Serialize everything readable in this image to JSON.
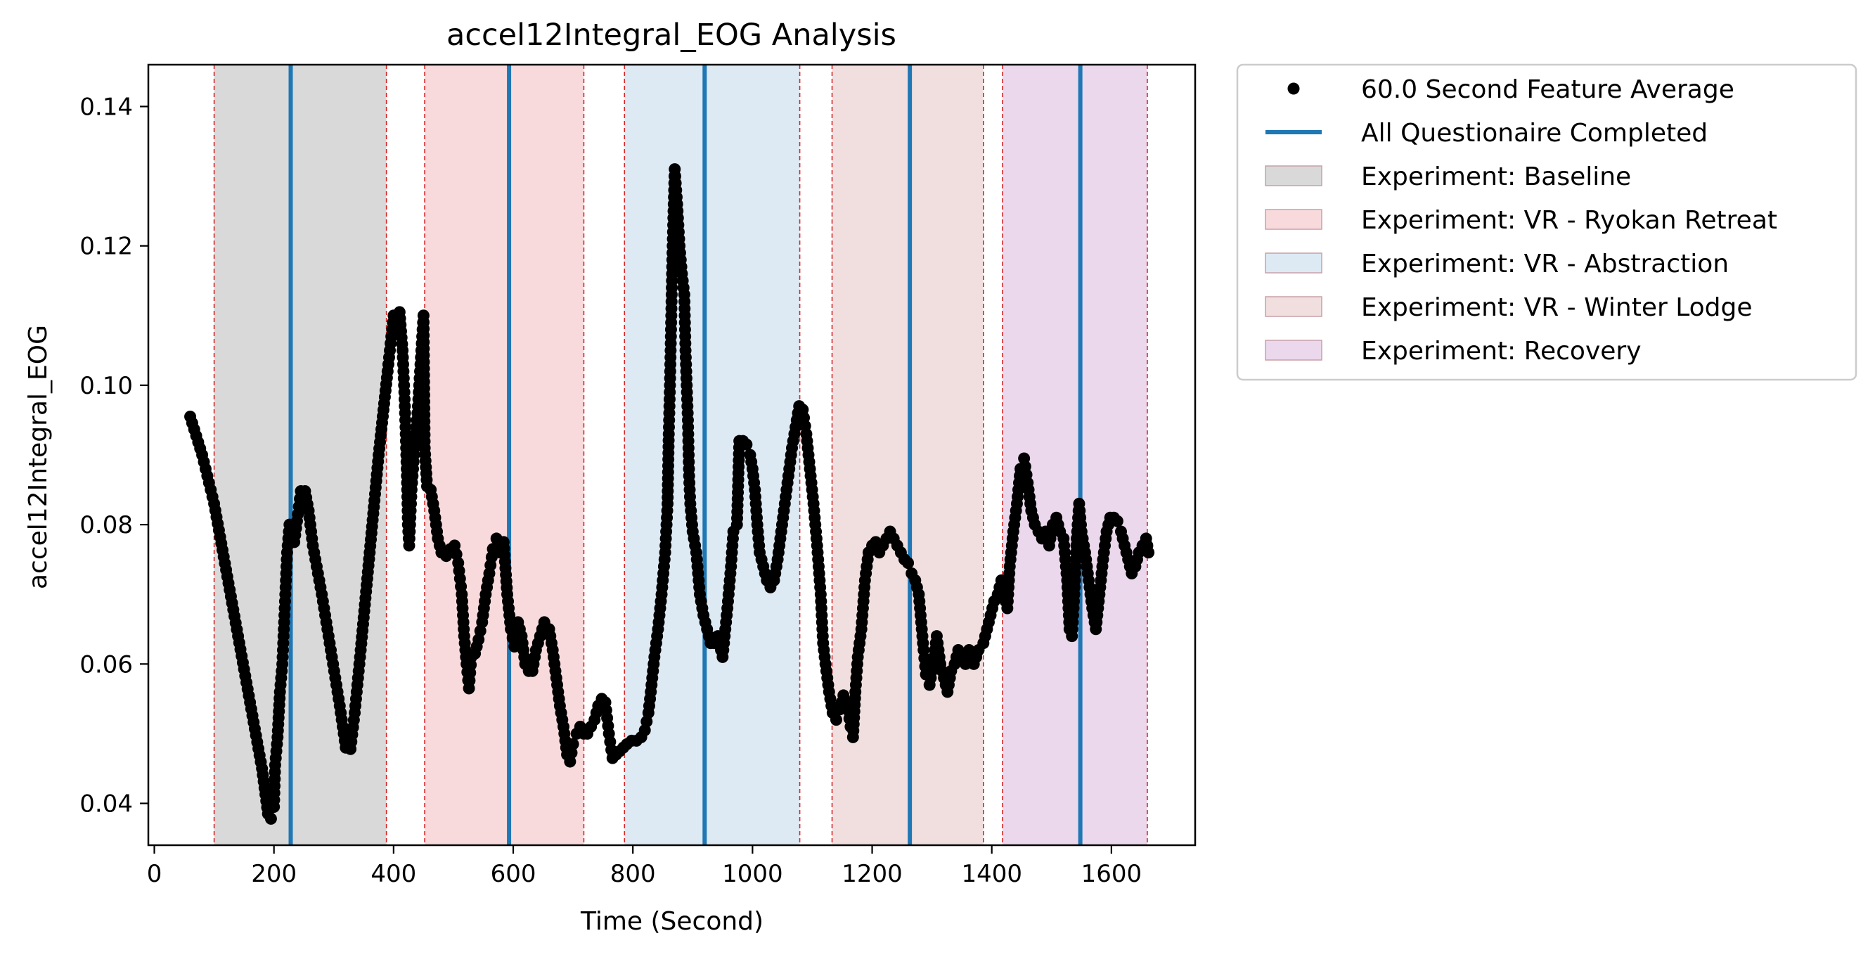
{
  "chart_data": {
    "type": "scatter",
    "title": "accel12Integral_EOG Analysis",
    "xlabel": "Time (Second)",
    "ylabel": "accel12Integral_EOG",
    "xlim": [
      -10,
      1740
    ],
    "ylim": [
      0.034,
      0.146
    ],
    "x_ticks": [
      0,
      200,
      400,
      600,
      800,
      1000,
      1200,
      1400,
      1600
    ],
    "y_ticks": [
      0.04,
      0.06,
      0.08,
      0.1,
      0.12,
      0.14
    ],
    "y_tick_labels": [
      "0.04",
      "0.06",
      "0.08",
      "0.10",
      "0.12",
      "0.14"
    ],
    "grid": false,
    "legend_position": "outside-right-top",
    "legend": [
      {
        "label": "60.0 Second Feature Average",
        "kind": "marker",
        "color": "#000000"
      },
      {
        "label": "All Questionaire Completed",
        "kind": "line",
        "color": "#1f77b4"
      },
      {
        "label": "Experiment: Baseline",
        "kind": "patch",
        "color": "#d9d9d9"
      },
      {
        "label": "Experiment: VR - Ryokan Retreat",
        "kind": "patch",
        "color": "#f8dadd"
      },
      {
        "label": "Experiment: VR - Abstraction",
        "kind": "patch",
        "color": "#dde9f3"
      },
      {
        "label": "Experiment: VR - Winter Lodge",
        "kind": "patch",
        "color": "#f1dfe0"
      },
      {
        "label": "Experiment: Recovery",
        "kind": "patch",
        "color": "#ebd8ec"
      }
    ],
    "phases": [
      {
        "name": "Baseline",
        "start": 100,
        "end": 388,
        "color": "#d9d9d9"
      },
      {
        "name": "VR - Ryokan Retreat",
        "start": 452,
        "end": 718,
        "color": "#f8dadd"
      },
      {
        "name": "VR - Abstraction",
        "start": 786,
        "end": 1079,
        "color": "#dde9f3"
      },
      {
        "name": "VR - Winter Lodge",
        "start": 1133,
        "end": 1386,
        "color": "#f1dfe0"
      },
      {
        "name": "Recovery",
        "start": 1418,
        "end": 1660,
        "color": "#ebd8ec"
      }
    ],
    "questionnaire_times": [
      228,
      593,
      920,
      1263,
      1548
    ],
    "series": [
      {
        "name": "60.0 Second Feature Average",
        "color": "#000000",
        "points": [
          [
            60,
            0.0955
          ],
          [
            80,
            0.09
          ],
          [
            100,
            0.083
          ],
          [
            120,
            0.0735
          ],
          [
            140,
            0.064
          ],
          [
            160,
            0.0545
          ],
          [
            180,
            0.045
          ],
          [
            190,
            0.0385
          ],
          [
            195,
            0.0378
          ],
          [
            200,
            0.0395
          ],
          [
            202,
            0.0455
          ],
          [
            206,
            0.0495
          ],
          [
            210,
            0.056
          ],
          [
            214,
            0.06
          ],
          [
            218,
            0.068
          ],
          [
            222,
            0.076
          ],
          [
            226,
            0.08
          ],
          [
            230,
            0.0785
          ],
          [
            234,
            0.0775
          ],
          [
            240,
            0.0815
          ],
          [
            245,
            0.0848
          ],
          [
            252,
            0.0848
          ],
          [
            258,
            0.082
          ],
          [
            265,
            0.077
          ],
          [
            280,
            0.07
          ],
          [
            295,
            0.062
          ],
          [
            310,
            0.054
          ],
          [
            320,
            0.048
          ],
          [
            328,
            0.0478
          ],
          [
            335,
            0.053
          ],
          [
            345,
            0.062
          ],
          [
            360,
            0.076
          ],
          [
            375,
            0.09
          ],
          [
            390,
            0.102
          ],
          [
            400,
            0.11
          ],
          [
            410,
            0.1105
          ],
          [
            415,
            0.105
          ],
          [
            418,
            0.099
          ],
          [
            420,
            0.094
          ],
          [
            422,
            0.088
          ],
          [
            424,
            0.08
          ],
          [
            426,
            0.077
          ],
          [
            430,
            0.085
          ],
          [
            435,
            0.091
          ],
          [
            440,
            0.096
          ],
          [
            445,
            0.103
          ],
          [
            450,
            0.11
          ],
          [
            452,
            0.091
          ],
          [
            456,
            0.0855
          ],
          [
            462,
            0.085
          ],
          [
            468,
            0.082
          ],
          [
            474,
            0.078
          ],
          [
            480,
            0.076
          ],
          [
            488,
            0.0755
          ],
          [
            495,
            0.0765
          ],
          [
            502,
            0.077
          ],
          [
            508,
            0.0745
          ],
          [
            514,
            0.07
          ],
          [
            518,
            0.064
          ],
          [
            522,
            0.06
          ],
          [
            526,
            0.0565
          ],
          [
            530,
            0.061
          ],
          [
            536,
            0.0615
          ],
          [
            542,
            0.0635
          ],
          [
            548,
            0.066
          ],
          [
            554,
            0.07
          ],
          [
            560,
            0.073
          ],
          [
            566,
            0.0765
          ],
          [
            572,
            0.078
          ],
          [
            578,
            0.076
          ],
          [
            584,
            0.0775
          ],
          [
            590,
            0.07
          ],
          [
            596,
            0.065
          ],
          [
            602,
            0.0625
          ],
          [
            608,
            0.066
          ],
          [
            614,
            0.064
          ],
          [
            620,
            0.06
          ],
          [
            626,
            0.059
          ],
          [
            632,
            0.059
          ],
          [
            638,
            0.062
          ],
          [
            645,
            0.064
          ],
          [
            652,
            0.066
          ],
          [
            660,
            0.065
          ],
          [
            666,
            0.062
          ],
          [
            672,
            0.058
          ],
          [
            678,
            0.054
          ],
          [
            684,
            0.051
          ],
          [
            690,
            0.047
          ],
          [
            695,
            0.046
          ],
          [
            700,
            0.0485
          ],
          [
            706,
            0.05
          ],
          [
            712,
            0.051
          ],
          [
            718,
            0.05
          ],
          [
            724,
            0.05
          ],
          [
            730,
            0.051
          ],
          [
            736,
            0.052
          ],
          [
            742,
            0.054
          ],
          [
            748,
            0.055
          ],
          [
            754,
            0.0545
          ],
          [
            760,
            0.05
          ],
          [
            766,
            0.0465
          ],
          [
            772,
            0.047
          ],
          [
            778,
            0.0475
          ],
          [
            784,
            0.048
          ],
          [
            790,
            0.0485
          ],
          [
            798,
            0.049
          ],
          [
            806,
            0.049
          ],
          [
            814,
            0.0495
          ],
          [
            820,
            0.0505
          ],
          [
            826,
            0.053
          ],
          [
            830,
            0.056
          ],
          [
            836,
            0.061
          ],
          [
            842,
            0.065
          ],
          [
            848,
            0.07
          ],
          [
            854,
            0.076
          ],
          [
            858,
            0.083
          ],
          [
            860,
            0.093
          ],
          [
            862,
            0.1
          ],
          [
            864,
            0.109
          ],
          [
            866,
            0.118
          ],
          [
            868,
            0.125
          ],
          [
            870,
            0.131
          ],
          [
            874,
            0.126
          ],
          [
            878,
            0.12
          ],
          [
            882,
            0.116
          ],
          [
            886,
            0.113
          ],
          [
            888,
            0.105
          ],
          [
            890,
            0.1
          ],
          [
            892,
            0.095
          ],
          [
            894,
            0.087
          ],
          [
            896,
            0.083
          ],
          [
            900,
            0.079
          ],
          [
            906,
            0.076
          ],
          [
            912,
            0.07
          ],
          [
            918,
            0.067
          ],
          [
            924,
            0.065
          ],
          [
            930,
            0.063
          ],
          [
            936,
            0.063
          ],
          [
            942,
            0.064
          ],
          [
            950,
            0.061
          ],
          [
            958,
            0.068
          ],
          [
            964,
            0.074
          ],
          [
            968,
            0.079
          ],
          [
            974,
            0.08
          ],
          [
            978,
            0.092
          ],
          [
            984,
            0.092
          ],
          [
            990,
            0.0915
          ],
          [
            996,
            0.09
          ],
          [
            1000,
            0.088
          ],
          [
            1004,
            0.085
          ],
          [
            1008,
            0.08
          ],
          [
            1012,
            0.076
          ],
          [
            1018,
            0.074
          ],
          [
            1024,
            0.072
          ],
          [
            1030,
            0.071
          ],
          [
            1036,
            0.072
          ],
          [
            1042,
            0.075
          ],
          [
            1048,
            0.079
          ],
          [
            1054,
            0.083
          ],
          [
            1060,
            0.087
          ],
          [
            1066,
            0.091
          ],
          [
            1072,
            0.094
          ],
          [
            1078,
            0.097
          ],
          [
            1084,
            0.0965
          ],
          [
            1090,
            0.093
          ],
          [
            1096,
            0.088
          ],
          [
            1102,
            0.083
          ],
          [
            1108,
            0.077
          ],
          [
            1114,
            0.07
          ],
          [
            1118,
            0.063
          ],
          [
            1122,
            0.06
          ],
          [
            1128,
            0.056
          ],
          [
            1134,
            0.053
          ],
          [
            1140,
            0.052
          ],
          [
            1146,
            0.0535
          ],
          [
            1152,
            0.0555
          ],
          [
            1158,
            0.0545
          ],
          [
            1164,
            0.051
          ],
          [
            1168,
            0.0495
          ],
          [
            1172,
            0.056
          ],
          [
            1176,
            0.061
          ],
          [
            1182,
            0.065
          ],
          [
            1188,
            0.072
          ],
          [
            1194,
            0.076
          ],
          [
            1200,
            0.077
          ],
          [
            1206,
            0.0775
          ],
          [
            1212,
            0.076
          ],
          [
            1218,
            0.077
          ],
          [
            1224,
            0.078
          ],
          [
            1230,
            0.079
          ],
          [
            1236,
            0.078
          ],
          [
            1242,
            0.077
          ],
          [
            1248,
            0.076
          ],
          [
            1254,
            0.075
          ],
          [
            1260,
            0.0745
          ],
          [
            1266,
            0.073
          ],
          [
            1272,
            0.072
          ],
          [
            1278,
            0.07
          ],
          [
            1282,
            0.066
          ],
          [
            1286,
            0.062
          ],
          [
            1290,
            0.0585
          ],
          [
            1296,
            0.057
          ],
          [
            1302,
            0.06
          ],
          [
            1308,
            0.064
          ],
          [
            1314,
            0.06
          ],
          [
            1320,
            0.058
          ],
          [
            1326,
            0.056
          ],
          [
            1332,
            0.059
          ],
          [
            1338,
            0.06
          ],
          [
            1344,
            0.062
          ],
          [
            1350,
            0.061
          ],
          [
            1356,
            0.06
          ],
          [
            1362,
            0.062
          ],
          [
            1370,
            0.06
          ],
          [
            1378,
            0.062
          ],
          [
            1386,
            0.063
          ],
          [
            1392,
            0.065
          ],
          [
            1398,
            0.067
          ],
          [
            1404,
            0.069
          ],
          [
            1410,
            0.07
          ],
          [
            1416,
            0.072
          ],
          [
            1420,
            0.07
          ],
          [
            1426,
            0.068
          ],
          [
            1430,
            0.074
          ],
          [
            1436,
            0.079
          ],
          [
            1442,
            0.083
          ],
          [
            1448,
            0.088
          ],
          [
            1454,
            0.0895
          ],
          [
            1460,
            0.086
          ],
          [
            1466,
            0.082
          ],
          [
            1472,
            0.08
          ],
          [
            1478,
            0.079
          ],
          [
            1484,
            0.078
          ],
          [
            1490,
            0.079
          ],
          [
            1496,
            0.077
          ],
          [
            1502,
            0.08
          ],
          [
            1508,
            0.081
          ],
          [
            1514,
            0.079
          ],
          [
            1520,
            0.078
          ],
          [
            1526,
            0.072
          ],
          [
            1530,
            0.065
          ],
          [
            1534,
            0.064
          ],
          [
            1538,
            0.07
          ],
          [
            1542,
            0.078
          ],
          [
            1546,
            0.083
          ],
          [
            1550,
            0.079
          ],
          [
            1556,
            0.076
          ],
          [
            1562,
            0.072
          ],
          [
            1568,
            0.068
          ],
          [
            1574,
            0.065
          ],
          [
            1580,
            0.07
          ],
          [
            1586,
            0.075
          ],
          [
            1592,
            0.079
          ],
          [
            1598,
            0.081
          ],
          [
            1604,
            0.081
          ],
          [
            1610,
            0.0805
          ],
          [
            1616,
            0.079
          ],
          [
            1622,
            0.077
          ],
          [
            1628,
            0.075
          ],
          [
            1634,
            0.073
          ],
          [
            1640,
            0.074
          ],
          [
            1646,
            0.076
          ],
          [
            1652,
            0.077
          ],
          [
            1658,
            0.078
          ],
          [
            1662,
            0.076
          ]
        ]
      }
    ]
  }
}
